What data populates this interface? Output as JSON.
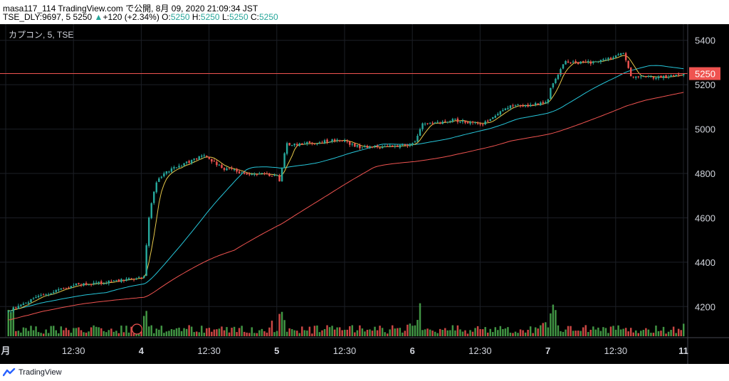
{
  "header": {
    "line1": "masa117_114 TradingView.com で公開, 8月 09, 2020 21:09:34 JST",
    "prefix": "TSE_DLY:9697, 5 5250",
    "change": "+120 (+2.34%)",
    "o_label": "O:",
    "o_val": "5250",
    "h_label": "H:",
    "h_val": "5250",
    "l_label": "L:",
    "l_val": "5250",
    "c_label": "C:",
    "c_val": "5250"
  },
  "symbol_label": "カプコン, 5, TSE",
  "footer": {
    "brand": "TradingView",
    "logo": "tradingview-logo-icon"
  },
  "colors": {
    "up": "#26a69a",
    "down": "#ef5350",
    "vol_up": "#4caf50",
    "vol_down": "#ef5350",
    "ma_short": "#e6c84a",
    "ma_mid": "#26c6da",
    "ma_long": "#ef5350",
    "price_line": "#ef5350",
    "axis_text": "#d1d4dc",
    "grid": "#1c1f26"
  },
  "chart_data": {
    "type": "candlestick",
    "interval": "5",
    "exchange": "TSE",
    "y_ticks": [
      4200,
      4400,
      4600,
      4800,
      5000,
      5200,
      5400
    ],
    "ylim": [
      4060,
      5460
    ],
    "x_ticks": [
      "月",
      "12:30",
      "4",
      "12:30",
      "5",
      "12:30",
      "6",
      "12:30",
      "7",
      "12:30",
      "11"
    ],
    "last_price": 5250,
    "sessions": [
      {
        "label": "月",
        "points": [
          [
            0,
            4180
          ],
          [
            0.25,
            4250
          ],
          [
            0.5,
            4300
          ],
          [
            0.75,
            4310
          ],
          [
            1,
            4330
          ]
        ]
      },
      {
        "label": "4",
        "points": [
          [
            0,
            4340
          ],
          [
            0.04,
            4620
          ],
          [
            0.1,
            4780
          ],
          [
            0.25,
            4830
          ],
          [
            0.45,
            4880
          ],
          [
            0.6,
            4820
          ],
          [
            0.8,
            4800
          ],
          [
            1,
            4790
          ]
        ]
      },
      {
        "label": "5",
        "points": [
          [
            0,
            4760
          ],
          [
            0.05,
            4930
          ],
          [
            0.3,
            4940
          ],
          [
            0.45,
            4950
          ],
          [
            0.6,
            4920
          ],
          [
            0.85,
            4920
          ],
          [
            1,
            4930
          ]
        ]
      },
      {
        "label": "6",
        "points": [
          [
            0,
            4950
          ],
          [
            0.05,
            5020
          ],
          [
            0.3,
            5040
          ],
          [
            0.5,
            5020
          ],
          [
            0.7,
            5100
          ],
          [
            0.9,
            5110
          ],
          [
            1,
            5130
          ]
        ]
      },
      {
        "label": "7",
        "points": [
          [
            0,
            5180
          ],
          [
            0.1,
            5300
          ],
          [
            0.3,
            5300
          ],
          [
            0.45,
            5320
          ],
          [
            0.55,
            5340
          ],
          [
            0.6,
            5240
          ],
          [
            0.8,
            5230
          ],
          [
            1,
            5250
          ]
        ]
      }
    ],
    "volume_profile": [
      0.08,
      0.05,
      0.05,
      0.22,
      0.1,
      0.05,
      0.05,
      0.06,
      0.04,
      0.12,
      0.08,
      0.05
    ]
  }
}
